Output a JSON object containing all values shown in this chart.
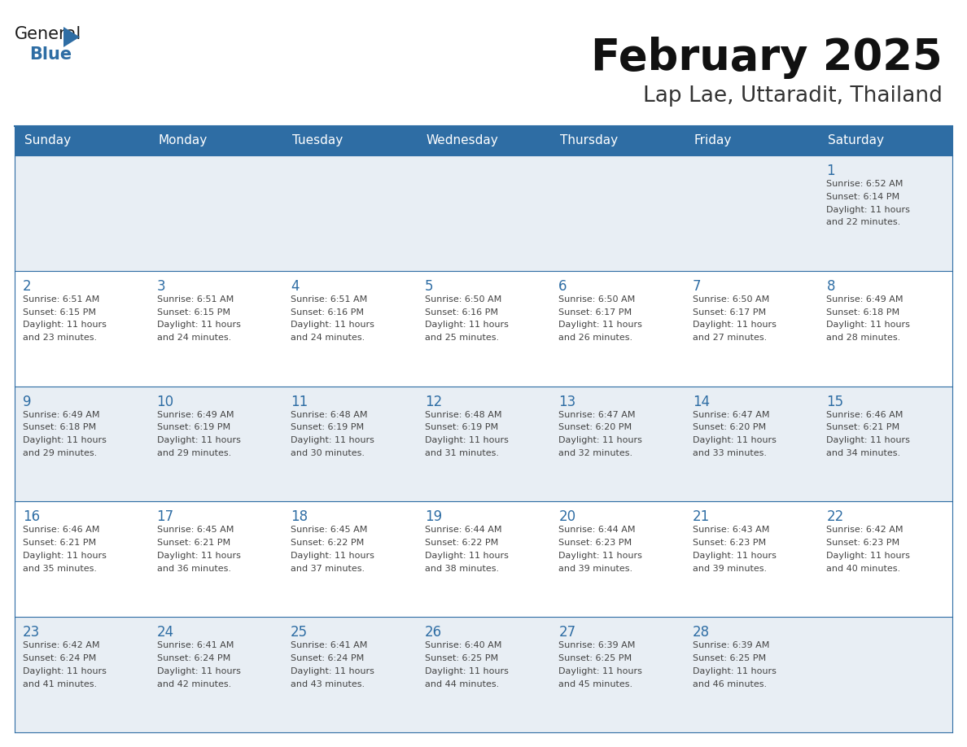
{
  "title": "February 2025",
  "subtitle": "Lap Lae, Uttaradit, Thailand",
  "header_bg": "#2E6DA4",
  "header_text_color": "#FFFFFF",
  "day_names": [
    "Sunday",
    "Monday",
    "Tuesday",
    "Wednesday",
    "Thursday",
    "Friday",
    "Saturday"
  ],
  "row_bg_light": "#E8EEF4",
  "row_bg_white": "#FFFFFF",
  "cell_border_color": "#2E6DA4",
  "day_number_color": "#2E6DA4",
  "info_text_color": "#444444",
  "calendar": [
    [
      null,
      null,
      null,
      null,
      null,
      null,
      {
        "day": "1",
        "sunrise": "6:52 AM",
        "sunset": "6:14 PM",
        "daylight": "11 hours",
        "daylight2": "and 22 minutes."
      }
    ],
    [
      {
        "day": "2",
        "sunrise": "6:51 AM",
        "sunset": "6:15 PM",
        "daylight": "11 hours",
        "daylight2": "and 23 minutes."
      },
      {
        "day": "3",
        "sunrise": "6:51 AM",
        "sunset": "6:15 PM",
        "daylight": "11 hours",
        "daylight2": "and 24 minutes."
      },
      {
        "day": "4",
        "sunrise": "6:51 AM",
        "sunset": "6:16 PM",
        "daylight": "11 hours",
        "daylight2": "and 24 minutes."
      },
      {
        "day": "5",
        "sunrise": "6:50 AM",
        "sunset": "6:16 PM",
        "daylight": "11 hours",
        "daylight2": "and 25 minutes."
      },
      {
        "day": "6",
        "sunrise": "6:50 AM",
        "sunset": "6:17 PM",
        "daylight": "11 hours",
        "daylight2": "and 26 minutes."
      },
      {
        "day": "7",
        "sunrise": "6:50 AM",
        "sunset": "6:17 PM",
        "daylight": "11 hours",
        "daylight2": "and 27 minutes."
      },
      {
        "day": "8",
        "sunrise": "6:49 AM",
        "sunset": "6:18 PM",
        "daylight": "11 hours",
        "daylight2": "and 28 minutes."
      }
    ],
    [
      {
        "day": "9",
        "sunrise": "6:49 AM",
        "sunset": "6:18 PM",
        "daylight": "11 hours",
        "daylight2": "and 29 minutes."
      },
      {
        "day": "10",
        "sunrise": "6:49 AM",
        "sunset": "6:19 PM",
        "daylight": "11 hours",
        "daylight2": "and 29 minutes."
      },
      {
        "day": "11",
        "sunrise": "6:48 AM",
        "sunset": "6:19 PM",
        "daylight": "11 hours",
        "daylight2": "and 30 minutes."
      },
      {
        "day": "12",
        "sunrise": "6:48 AM",
        "sunset": "6:19 PM",
        "daylight": "11 hours",
        "daylight2": "and 31 minutes."
      },
      {
        "day": "13",
        "sunrise": "6:47 AM",
        "sunset": "6:20 PM",
        "daylight": "11 hours",
        "daylight2": "and 32 minutes."
      },
      {
        "day": "14",
        "sunrise": "6:47 AM",
        "sunset": "6:20 PM",
        "daylight": "11 hours",
        "daylight2": "and 33 minutes."
      },
      {
        "day": "15",
        "sunrise": "6:46 AM",
        "sunset": "6:21 PM",
        "daylight": "11 hours",
        "daylight2": "and 34 minutes."
      }
    ],
    [
      {
        "day": "16",
        "sunrise": "6:46 AM",
        "sunset": "6:21 PM",
        "daylight": "11 hours",
        "daylight2": "and 35 minutes."
      },
      {
        "day": "17",
        "sunrise": "6:45 AM",
        "sunset": "6:21 PM",
        "daylight": "11 hours",
        "daylight2": "and 36 minutes."
      },
      {
        "day": "18",
        "sunrise": "6:45 AM",
        "sunset": "6:22 PM",
        "daylight": "11 hours",
        "daylight2": "and 37 minutes."
      },
      {
        "day": "19",
        "sunrise": "6:44 AM",
        "sunset": "6:22 PM",
        "daylight": "11 hours",
        "daylight2": "and 38 minutes."
      },
      {
        "day": "20",
        "sunrise": "6:44 AM",
        "sunset": "6:23 PM",
        "daylight": "11 hours",
        "daylight2": "and 39 minutes."
      },
      {
        "day": "21",
        "sunrise": "6:43 AM",
        "sunset": "6:23 PM",
        "daylight": "11 hours",
        "daylight2": "and 39 minutes."
      },
      {
        "day": "22",
        "sunrise": "6:42 AM",
        "sunset": "6:23 PM",
        "daylight": "11 hours",
        "daylight2": "and 40 minutes."
      }
    ],
    [
      {
        "day": "23",
        "sunrise": "6:42 AM",
        "sunset": "6:24 PM",
        "daylight": "11 hours",
        "daylight2": "and 41 minutes."
      },
      {
        "day": "24",
        "sunrise": "6:41 AM",
        "sunset": "6:24 PM",
        "daylight": "11 hours",
        "daylight2": "and 42 minutes."
      },
      {
        "day": "25",
        "sunrise": "6:41 AM",
        "sunset": "6:24 PM",
        "daylight": "11 hours",
        "daylight2": "and 43 minutes."
      },
      {
        "day": "26",
        "sunrise": "6:40 AM",
        "sunset": "6:25 PM",
        "daylight": "11 hours",
        "daylight2": "and 44 minutes."
      },
      {
        "day": "27",
        "sunrise": "6:39 AM",
        "sunset": "6:25 PM",
        "daylight": "11 hours",
        "daylight2": "and 45 minutes."
      },
      {
        "day": "28",
        "sunrise": "6:39 AM",
        "sunset": "6:25 PM",
        "daylight": "11 hours",
        "daylight2": "and 46 minutes."
      },
      null
    ]
  ]
}
